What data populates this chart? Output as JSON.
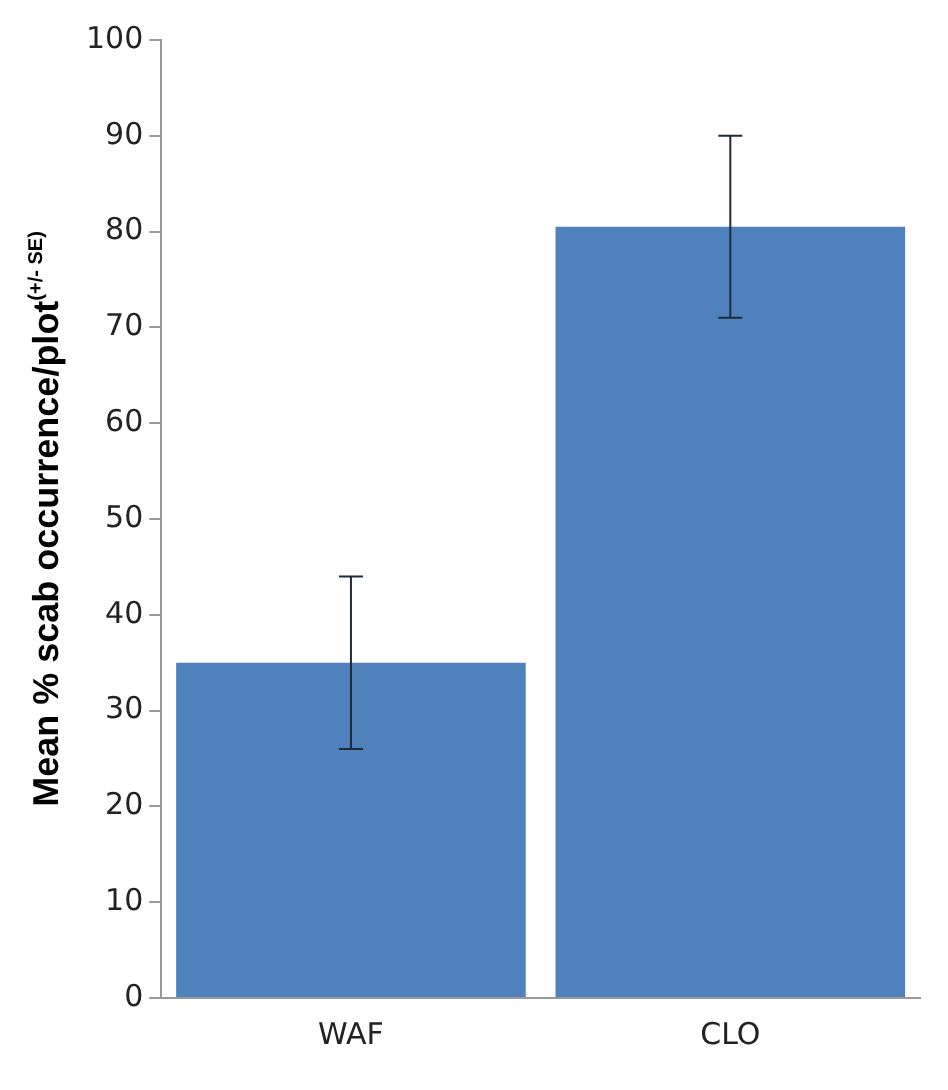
{
  "chart_data": {
    "type": "bar",
    "ylabel": "Mean % scab occurrence/plot$^{(+/- SE)}$",
    "categories": [
      "WAF",
      "CLO"
    ],
    "values": [
      35,
      80.5
    ],
    "errors": [
      9,
      9.5
    ],
    "color": "#4f81bd",
    "ylim": [
      0,
      100
    ],
    "yticks": [
      0,
      10,
      20,
      30,
      40,
      50,
      60,
      70,
      80,
      90,
      100
    ],
    "grid": false,
    "legend": false
  }
}
